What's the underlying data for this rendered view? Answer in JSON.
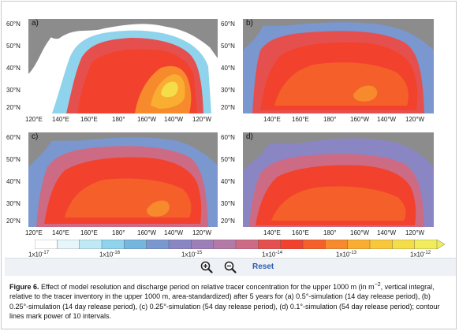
{
  "figure": {
    "panels": [
      {
        "letter": "a)",
        "lat_labels": [
          "60°N",
          "50°N",
          "40°N",
          "30°N",
          "20°N"
        ],
        "lon_labels": [
          "120°E",
          "140°E",
          "160°E",
          "180°",
          "160°W",
          "140°W",
          "120°W"
        ]
      },
      {
        "letter": "b)",
        "lat_labels": [
          "60°N",
          "50°N",
          "40°N",
          "30°N",
          "20°N"
        ],
        "lon_labels": [
          "140°E",
          "160°E",
          "180°",
          "160°W",
          "140°W",
          "120°W"
        ]
      },
      {
        "letter": "c)",
        "lat_labels": [
          "60°N",
          "50°N",
          "40°N",
          "30°N",
          "20°N"
        ],
        "lon_labels": [
          "120°E",
          "140°E",
          "160°E",
          "180°",
          "160°W",
          "140°W",
          "120°W"
        ]
      },
      {
        "letter": "d)",
        "lat_labels": [
          "60°N",
          "50°N",
          "40°N",
          "30°N",
          "20°N"
        ],
        "lon_labels": [
          "140°E",
          "160°E",
          "180°",
          "160°W",
          "140°W",
          "120°W"
        ]
      }
    ],
    "colorbar": {
      "labels": [
        {
          "base": "1x10",
          "exp": "-17"
        },
        {
          "base": "1x10",
          "exp": "-16"
        },
        {
          "base": "1x10",
          "exp": "-15"
        },
        {
          "base": "1x10",
          "exp": "-14"
        },
        {
          "base": "1x10",
          "exp": "-13"
        },
        {
          "base": "1x10",
          "exp": "-12"
        }
      ],
      "colors": [
        "#ffffff",
        "#e6f6fb",
        "#bfe9f4",
        "#8fd4ec",
        "#74b6de",
        "#7a97cf",
        "#8a86c4",
        "#9c7fb8",
        "#b47aa7",
        "#cd6b85",
        "#e5504f",
        "#f2422e",
        "#f5602a",
        "#f78a2d",
        "#f9ad31",
        "#f9c73a",
        "#f5dd4a",
        "#f1ec5c"
      ]
    }
  },
  "toolbar": {
    "zoom_in": "zoom-in",
    "zoom_out": "zoom-out",
    "reset_label": "Reset"
  },
  "caption": {
    "title": "Figure 6.",
    "text": "Effect of model resolution and discharge period on relative tracer concentration for the upper 1000 m (in m",
    "exp": "−2",
    "text2": ", vertical integral, relative to the tracer inventory in the upper 1000 m, area-standardized) after 5 years for (a) 0.5°-simulation (14 day release period), (b) 0.25°-simulation (14 day release period), (c) 0.25°-simulation (54 day release period), (d) 0.1°-simulation (54 day release period); contour lines mark power of 10 intervals."
  }
}
